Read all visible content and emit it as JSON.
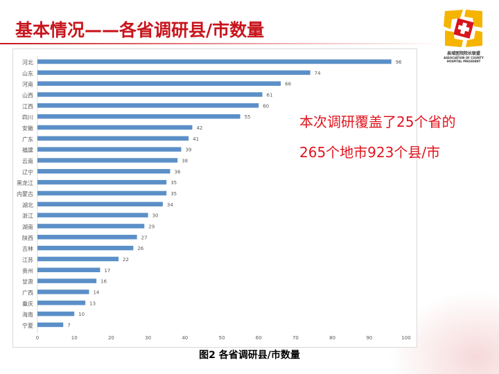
{
  "title": "基本情况——各省调研县/市数量",
  "logo": {
    "cn": "县域医院院长联盟",
    "en1": "ASSOCIATION OF COUNTY",
    "en2": "HOSPITAL PRESIDENT"
  },
  "notes": [
    "本次调研覆盖了25个省的",
    "265个地市923个县/市"
  ],
  "caption": "图2  各省调研县/市数量",
  "colors": {
    "bar": "#5b8fc7",
    "title": "#c8151d",
    "note": "#e0141e"
  },
  "chart_data": {
    "type": "bar",
    "orientation": "horizontal",
    "categories": [
      "河北",
      "山东",
      "河南",
      "山西",
      "江西",
      "四川",
      "安徽",
      "广东",
      "福建",
      "云南",
      "辽宁",
      "黑龙江",
      "内蒙古",
      "湖北",
      "浙江",
      "湖南",
      "陕西",
      "吉林",
      "江苏",
      "贵州",
      "甘肃",
      "广西",
      "重庆",
      "海南",
      "宁夏"
    ],
    "values": [
      96,
      74,
      66,
      61,
      60,
      55,
      42,
      41,
      39,
      38,
      36,
      35,
      35,
      34,
      30,
      29,
      27,
      26,
      22,
      17,
      16,
      14,
      13,
      10,
      7
    ],
    "xlim": [
      0,
      100
    ],
    "xticks": [
      0,
      10,
      20,
      30,
      40,
      50,
      60,
      70,
      80,
      90,
      100
    ],
    "grid": false,
    "title": "图2  各省调研县/市数量"
  }
}
